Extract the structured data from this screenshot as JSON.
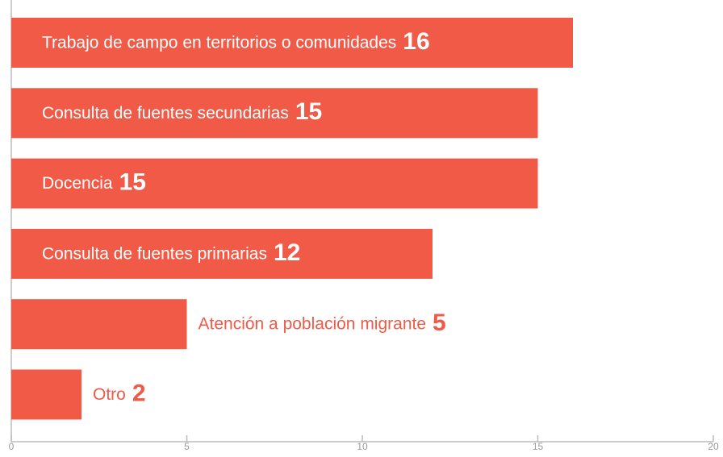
{
  "chart_data": {
    "type": "bar",
    "orientation": "horizontal",
    "categories": [
      "Trabajo de campo en territorios o comunidades",
      "Consulta de fuentes secundarias",
      "Docencia",
      "Consulta de fuentes primarias",
      "Atención a población migrante",
      "Otro"
    ],
    "values": [
      16,
      15,
      15,
      12,
      5,
      2
    ],
    "color": "#f05a47",
    "xlim": [
      0,
      20
    ],
    "xticks": [
      0,
      5,
      10,
      15,
      20
    ],
    "grid": false
  }
}
